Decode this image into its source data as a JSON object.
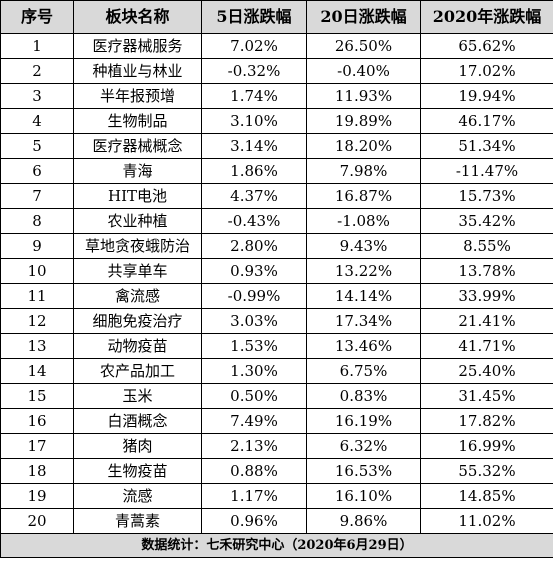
{
  "table": {
    "headers": [
      "序号",
      "板块名称",
      "5日涨跌幅",
      "20日涨跌幅",
      "2020年涨跌幅"
    ],
    "rows": [
      [
        "1",
        "医疗器械服务",
        "7.02%",
        "26.50%",
        "65.62%"
      ],
      [
        "2",
        "种植业与林业",
        "-0.32%",
        "-0.40%",
        "17.02%"
      ],
      [
        "3",
        "半年报预增",
        "1.74%",
        "11.93%",
        "19.94%"
      ],
      [
        "4",
        "生物制品",
        "3.10%",
        "19.89%",
        "46.17%"
      ],
      [
        "5",
        "医疗器械概念",
        "3.14%",
        "18.20%",
        "51.34%"
      ],
      [
        "6",
        "青海",
        "1.86%",
        "7.98%",
        "-11.47%"
      ],
      [
        "7",
        "HIT电池",
        "4.37%",
        "16.87%",
        "15.73%"
      ],
      [
        "8",
        "农业种植",
        "-0.43%",
        "-1.08%",
        "35.42%"
      ],
      [
        "9",
        "草地贪夜蛾防治",
        "2.80%",
        "9.43%",
        "8.55%"
      ],
      [
        "10",
        "共享单车",
        "0.93%",
        "13.22%",
        "13.78%"
      ],
      [
        "11",
        "禽流感",
        "-0.99%",
        "14.14%",
        "33.99%"
      ],
      [
        "12",
        "细胞免疫治疗",
        "3.03%",
        "17.34%",
        "21.41%"
      ],
      [
        "13",
        "动物疫苗",
        "1.53%",
        "13.46%",
        "41.71%"
      ],
      [
        "14",
        "农产品加工",
        "1.30%",
        "6.75%",
        "25.40%"
      ],
      [
        "15",
        "玉米",
        "0.50%",
        "0.83%",
        "31.45%"
      ],
      [
        "16",
        "白酒概念",
        "7.49%",
        "16.19%",
        "17.82%"
      ],
      [
        "17",
        "猪肉",
        "2.13%",
        "6.32%",
        "16.99%"
      ],
      [
        "18",
        "生物疫苗",
        "0.88%",
        "16.53%",
        "55.32%"
      ],
      [
        "19",
        "流感",
        "1.17%",
        "16.10%",
        "14.85%"
      ],
      [
        "20",
        "青蒿素",
        "0.96%",
        "9.86%",
        "11.02%"
      ]
    ],
    "footer": "数据统计：七禾研究中心（2020年6月29日）"
  }
}
